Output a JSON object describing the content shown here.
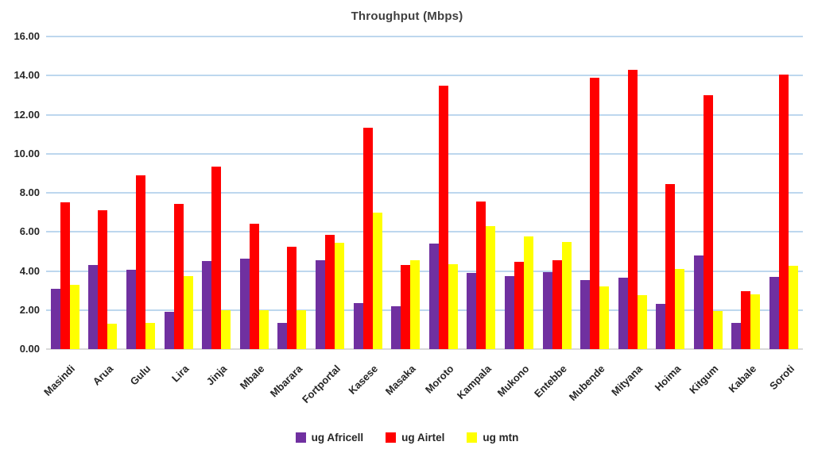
{
  "chart_data": {
    "type": "bar",
    "title": "Throughput (Mbps)",
    "xlabel": "",
    "ylabel": "",
    "categories": [
      "Masindi",
      "Arua",
      "Gulu",
      "Lira",
      "Jinja",
      "Mbale",
      "Mbarara",
      "Fortportal",
      "Kasese",
      "Masaka",
      "Moroto",
      "Kampala",
      "Mukono",
      "Entebbe",
      "Mubende",
      "Mityana",
      "Hoima",
      "Kitgum",
      "Kabale",
      "Soroti"
    ],
    "series": [
      {
        "name": "ug Africell",
        "color": "#7030A0",
        "values": [
          3.1,
          4.3,
          4.05,
          1.9,
          4.5,
          4.65,
          1.35,
          4.55,
          2.35,
          2.2,
          5.4,
          3.9,
          3.75,
          3.95,
          3.55,
          3.65,
          2.3,
          4.8,
          1.35,
          3.7
        ]
      },
      {
        "name": "ug Airtel",
        "color": "#FF0000",
        "values": [
          7.5,
          7.1,
          8.9,
          7.45,
          9.35,
          6.4,
          5.25,
          5.85,
          11.35,
          4.3,
          13.5,
          7.55,
          4.45,
          4.55,
          13.9,
          14.3,
          8.45,
          13.0,
          2.95,
          14.05
        ]
      },
      {
        "name": "ug mtn",
        "color": "#FFFF00",
        "values": [
          3.3,
          1.3,
          1.35,
          3.75,
          2.0,
          2.0,
          2.0,
          5.45,
          7.0,
          4.55,
          4.35,
          6.3,
          5.75,
          5.5,
          3.2,
          2.75,
          4.1,
          1.95,
          2.8,
          4.25
        ]
      }
    ],
    "ylim": [
      0,
      16
    ],
    "ytick_step": 2,
    "ytick_labels": [
      "0.00",
      "2.00",
      "4.00",
      "6.00",
      "8.00",
      "10.00",
      "12.00",
      "14.00",
      "16.00"
    ],
    "grid": true,
    "legend_position": "bottom",
    "colors": {
      "gridline": "#BDD7EE",
      "axis_line": "#D9D9D9",
      "tick_text": "#262626",
      "title_text": "#3F3F3F",
      "background": "#FFFFFF"
    }
  }
}
